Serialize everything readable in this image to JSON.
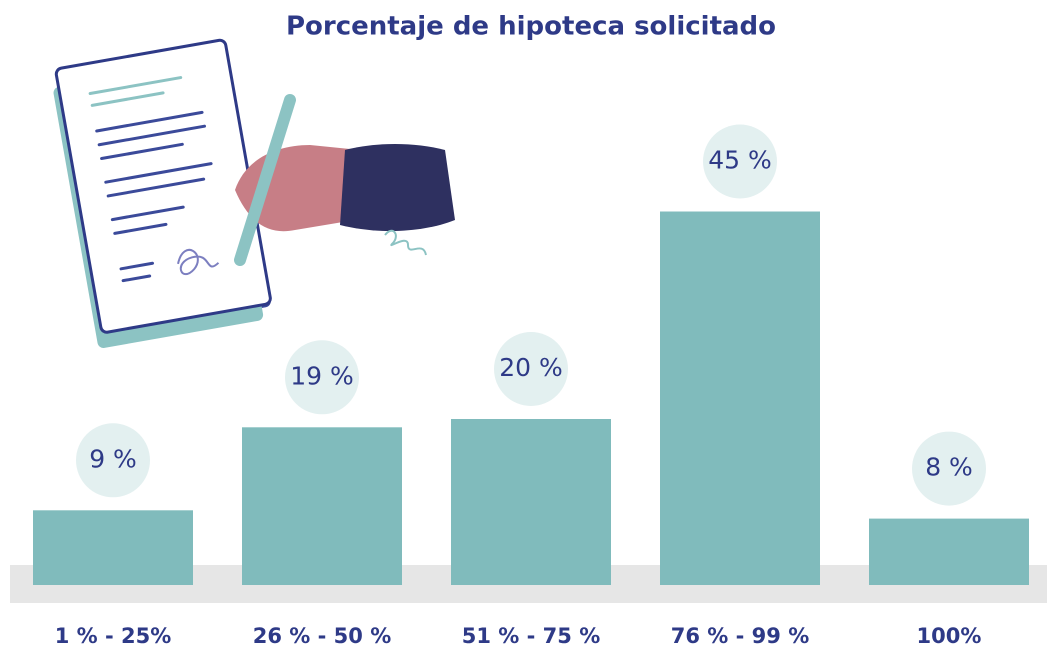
{
  "chart_data": {
    "type": "bar",
    "title": "Porcentaje de hipoteca solicitado",
    "categories": [
      "1 % - 25%",
      "26 % - 50 %",
      "51 % - 75 %",
      "76 % - 99 %",
      "100%"
    ],
    "values": [
      9,
      19,
      20,
      45,
      8
    ],
    "value_labels": [
      "9 %",
      "19 %",
      "20 %",
      "45 %",
      "8 %"
    ],
    "color": "#80bbbc"
  }
}
